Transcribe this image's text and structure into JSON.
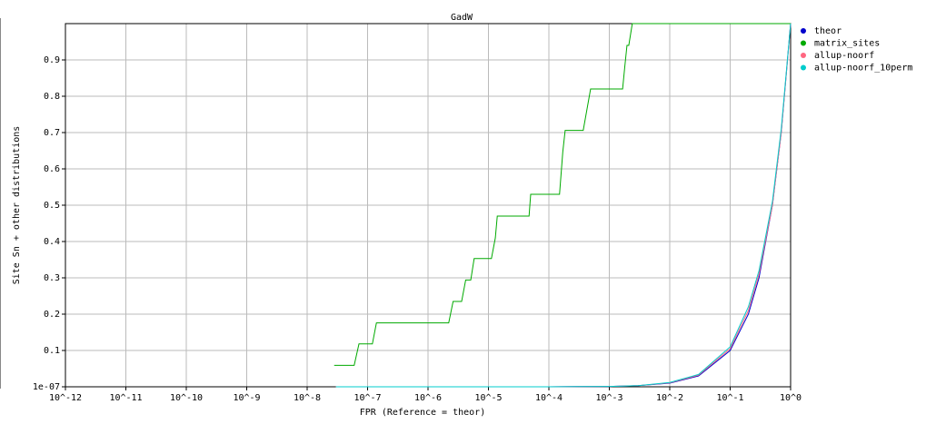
{
  "chart_data": {
    "type": "line",
    "title": "GadW",
    "x_label": "FPR (Reference = theor)",
    "y_label": "Site Sn + other distributions",
    "xscale": "log",
    "grid": true,
    "legend": "right",
    "xlim": [
      1e-12,
      1
    ],
    "ylim": [
      1e-07,
      1
    ],
    "xticks": [
      {
        "value": 1e-12,
        "label": "10^-12"
      },
      {
        "value": 1e-11,
        "label": "10^-11"
      },
      {
        "value": 1e-10,
        "label": "10^-10"
      },
      {
        "value": 1e-09,
        "label": "10^-9"
      },
      {
        "value": 1e-08,
        "label": "10^-8"
      },
      {
        "value": 1e-07,
        "label": "10^-7"
      },
      {
        "value": 1e-06,
        "label": "10^-6"
      },
      {
        "value": 1e-05,
        "label": "10^-5"
      },
      {
        "value": 0.0001,
        "label": "10^-4"
      },
      {
        "value": 0.001,
        "label": "10^-3"
      },
      {
        "value": 0.01,
        "label": "10^-2"
      },
      {
        "value": 0.1,
        "label": "10^-1"
      },
      {
        "value": 1,
        "label": "10^0"
      }
    ],
    "yticks": [
      {
        "value": 1e-07,
        "label": "1e-07"
      },
      0.1,
      0.2,
      0.3,
      0.4,
      0.5,
      0.6,
      0.7,
      0.8,
      0.9
    ],
    "series": [
      {
        "name": "theor",
        "color": "#0000cc",
        "x": [
          3e-08,
          1e-06,
          0.0001,
          0.001,
          0.003,
          0.01,
          0.03,
          0.1,
          0.2,
          0.3,
          0.5,
          0.7,
          1
        ],
        "values": [
          3e-08,
          1e-06,
          0.0001,
          0.001,
          0.003,
          0.01,
          0.03,
          0.1,
          0.2,
          0.3,
          0.5,
          0.7,
          1
        ]
      },
      {
        "name": "matrix_sites",
        "color": "#00aa00",
        "x": [
          2.8e-08,
          6e-08,
          7.2e-08,
          1.2e-07,
          1.4e-07,
          2.2e-06,
          2.6e-06,
          3.6e-06,
          4.2e-06,
          5.1e-06,
          5.8e-06,
          1.12e-05,
          1.3e-05,
          1.4e-05,
          4.7e-05,
          5e-05,
          0.00015,
          0.00017,
          0.000186,
          0.00037,
          0.00049,
          0.00166,
          0.0018,
          0.00196,
          0.0021,
          0.0024,
          1
        ],
        "values": [
          0.059,
          0.059,
          0.118,
          0.118,
          0.176,
          0.176,
          0.235,
          0.235,
          0.294,
          0.294,
          0.353,
          0.353,
          0.41,
          0.47,
          0.47,
          0.53,
          0.53,
          0.647,
          0.706,
          0.706,
          0.82,
          0.82,
          0.88,
          0.94,
          0.94,
          1,
          1
        ]
      },
      {
        "name": "allup-noorf",
        "color": "#ff6680",
        "x": [
          3e-08,
          1e-06,
          0.0001,
          0.001,
          0.003,
          0.01,
          0.03,
          0.1,
          0.2,
          0.3,
          0.5,
          0.7,
          1
        ],
        "values": [
          3e-08,
          1e-06,
          0.0001,
          0.001,
          0.003,
          0.011,
          0.032,
          0.105,
          0.21,
          0.31,
          0.5,
          0.7,
          1
        ]
      },
      {
        "name": "allup-noorf_10perm",
        "color": "#00cccc",
        "x": [
          3e-08,
          1e-06,
          0.0001,
          0.001,
          0.003,
          0.01,
          0.03,
          0.1,
          0.2,
          0.3,
          0.5,
          0.7,
          1
        ],
        "values": [
          3e-08,
          1e-06,
          0.0001,
          0.001,
          0.003,
          0.012,
          0.034,
          0.11,
          0.22,
          0.32,
          0.51,
          0.71,
          1
        ]
      }
    ]
  }
}
